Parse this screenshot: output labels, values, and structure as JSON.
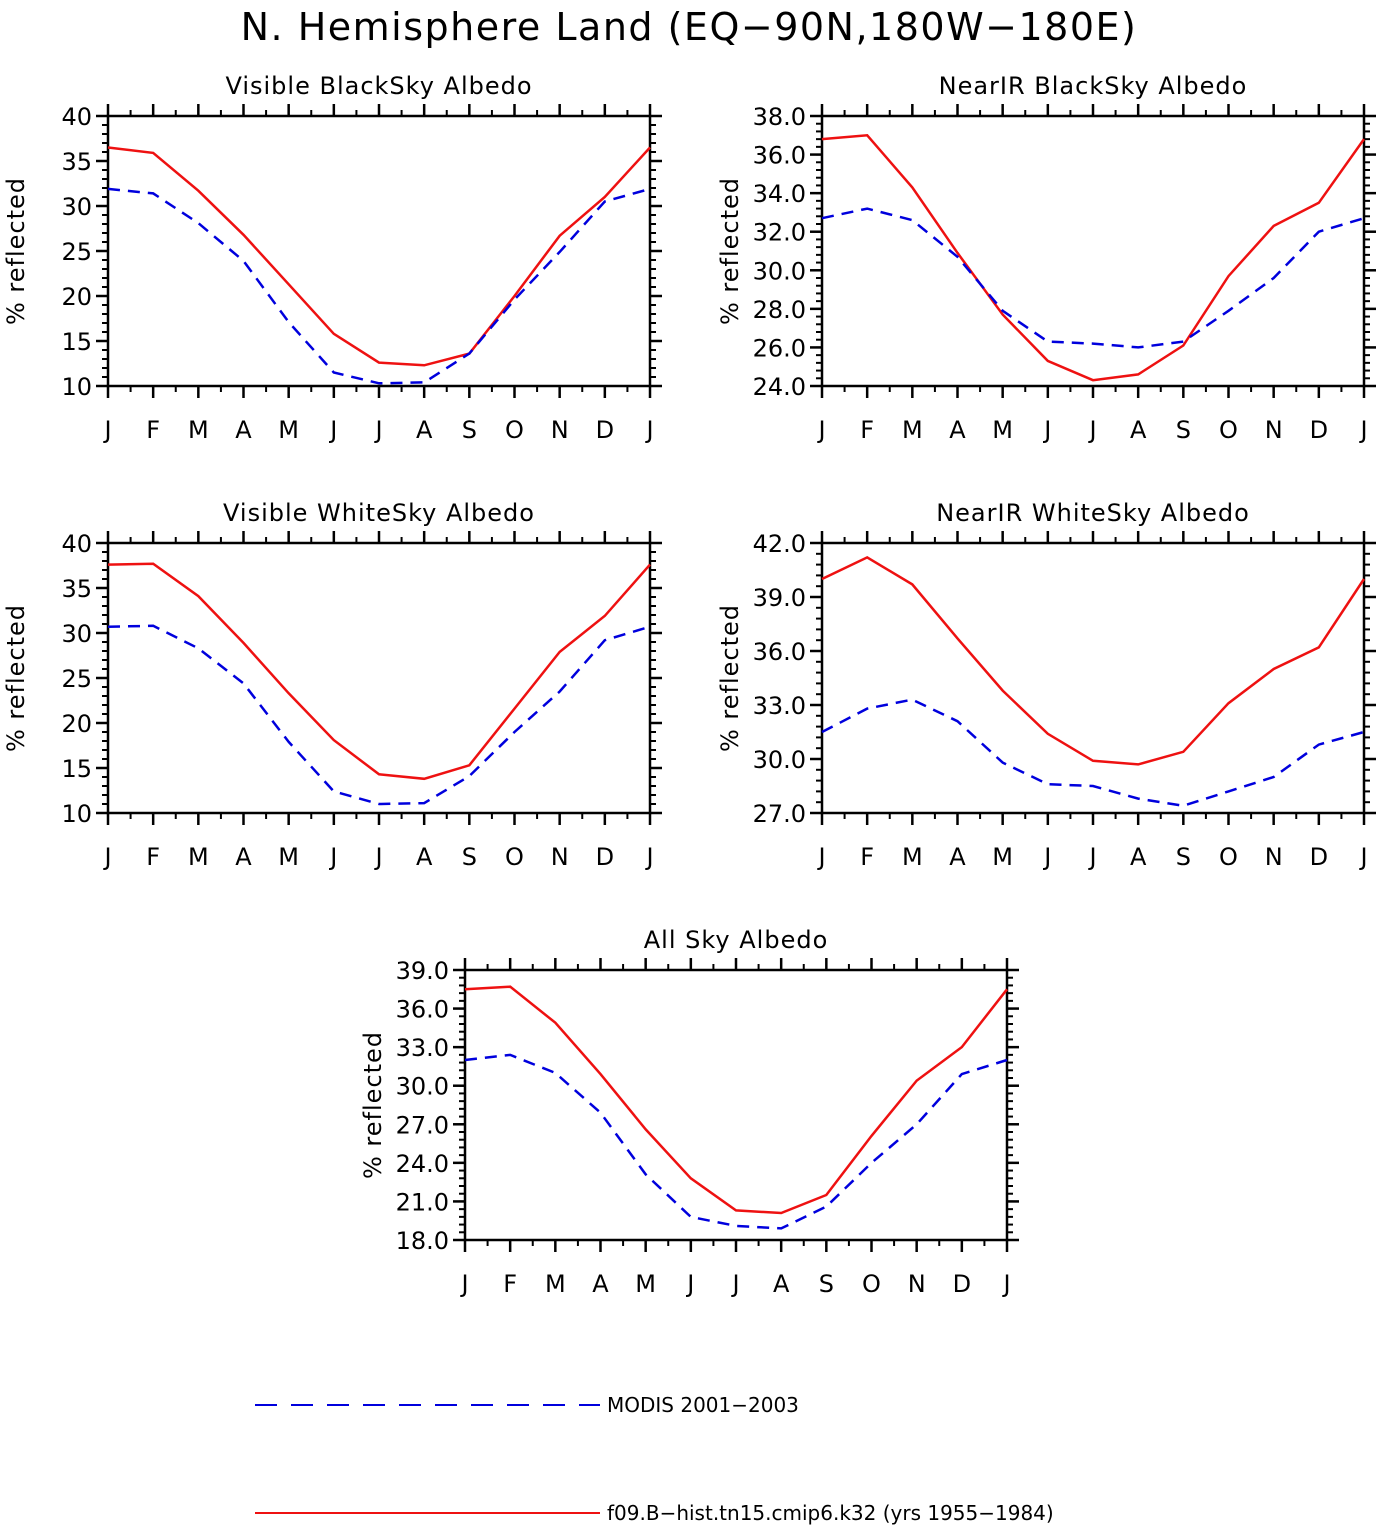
{
  "title": "N. Hemisphere Land (EQ−90N,180W−180E)",
  "months": [
    "J",
    "F",
    "M",
    "A",
    "M",
    "J",
    "J",
    "A",
    "S",
    "O",
    "N",
    "D",
    "J"
  ],
  "colors": {
    "model": "#ee1111",
    "obs": "#0000dd",
    "axis": "#000000"
  },
  "legend": [
    {
      "label": "MODIS 2001−2003",
      "style": "dashed",
      "color": "#0000dd"
    },
    {
      "label": "f09.B−hist.tn15.cmip6.k32 (yrs 1955−1984)",
      "style": "solid",
      "color": "#ee1111"
    }
  ],
  "chart_data": [
    {
      "type": "line",
      "title": "Visible BlackSky Albedo",
      "ylabel": "% reflected",
      "xlabel": "",
      "ylim": [
        10,
        40
      ],
      "yticks": [
        "10",
        "15",
        "20",
        "25",
        "30",
        "35",
        "40"
      ],
      "ytick_values": [
        10,
        15,
        20,
        25,
        30,
        35,
        40
      ],
      "series": [
        {
          "name": "f09.B−hist.tn15.cmip6.k32 (yrs 1955−1984)",
          "style": "solid",
          "values": [
            36.5,
            35.9,
            31.7,
            26.8,
            21.3,
            15.8,
            12.6,
            12.3,
            13.6,
            20.0,
            26.7,
            31.0,
            36.5
          ]
        },
        {
          "name": "MODIS 2001−2003",
          "style": "dashed",
          "values": [
            31.9,
            31.4,
            28.1,
            23.9,
            17.1,
            11.5,
            10.3,
            10.4,
            13.6,
            19.6,
            24.9,
            30.5,
            31.9
          ]
        }
      ]
    },
    {
      "type": "line",
      "title": "NearIR BlackSky Albedo",
      "ylabel": "% reflected",
      "xlabel": "",
      "ylim": [
        24.0,
        38.0
      ],
      "yticks": [
        "24.0",
        "26.0",
        "28.0",
        "30.0",
        "32.0",
        "34.0",
        "36.0",
        "38.0"
      ],
      "ytick_values": [
        24,
        26,
        28,
        30,
        32,
        34,
        36,
        38
      ],
      "series": [
        {
          "name": "f09.B−hist.tn15.cmip6.k32 (yrs 1955−1984)",
          "style": "solid",
          "values": [
            36.8,
            37.0,
            34.3,
            30.9,
            27.7,
            25.3,
            24.3,
            24.6,
            26.1,
            29.7,
            32.3,
            33.5,
            36.8
          ]
        },
        {
          "name": "MODIS 2001−2003",
          "style": "dashed",
          "values": [
            32.7,
            33.2,
            32.6,
            30.7,
            27.9,
            26.3,
            26.2,
            26.0,
            26.3,
            27.9,
            29.6,
            32.0,
            32.7
          ]
        }
      ]
    },
    {
      "type": "line",
      "title": "Visible WhiteSky Albedo",
      "ylabel": "% reflected",
      "xlabel": "",
      "ylim": [
        10,
        40
      ],
      "yticks": [
        "10",
        "15",
        "20",
        "25",
        "30",
        "35",
        "40"
      ],
      "ytick_values": [
        10,
        15,
        20,
        25,
        30,
        35,
        40
      ],
      "series": [
        {
          "name": "f09.B−hist.tn15.cmip6.k32 (yrs 1955−1984)",
          "style": "solid",
          "values": [
            37.6,
            37.7,
            34.1,
            28.9,
            23.3,
            18.1,
            14.3,
            13.8,
            15.3,
            21.6,
            27.9,
            31.9,
            37.6
          ]
        },
        {
          "name": "MODIS 2001−2003",
          "style": "dashed",
          "values": [
            30.7,
            30.8,
            28.3,
            24.4,
            17.9,
            12.4,
            11.0,
            11.1,
            14.1,
            19.0,
            23.5,
            29.2,
            30.7
          ]
        }
      ]
    },
    {
      "type": "line",
      "title": "NearIR WhiteSky Albedo",
      "ylabel": "% reflected",
      "xlabel": "",
      "ylim": [
        27.0,
        42.0
      ],
      "yticks": [
        "27.0",
        "30.0",
        "33.0",
        "36.0",
        "39.0",
        "42.0"
      ],
      "ytick_values": [
        27,
        30,
        33,
        36,
        39,
        42
      ],
      "series": [
        {
          "name": "f09.B−hist.tn15.cmip6.k32 (yrs 1955−1984)",
          "style": "solid",
          "values": [
            40.0,
            41.2,
            39.7,
            36.7,
            33.8,
            31.4,
            29.9,
            29.7,
            30.4,
            33.1,
            35.0,
            36.2,
            40.0
          ]
        },
        {
          "name": "MODIS 2001−2003",
          "style": "dashed",
          "values": [
            31.5,
            32.8,
            33.3,
            32.1,
            29.8,
            28.6,
            28.5,
            27.8,
            27.4,
            28.2,
            29.0,
            30.8,
            31.5
          ]
        }
      ]
    },
    {
      "type": "line",
      "title": "All Sky Albedo",
      "ylabel": "% reflected",
      "xlabel": "",
      "ylim": [
        18.0,
        39.0
      ],
      "yticks": [
        "18.0",
        "21.0",
        "24.0",
        "27.0",
        "30.0",
        "33.0",
        "36.0",
        "39.0"
      ],
      "ytick_values": [
        18,
        21,
        24,
        27,
        30,
        33,
        36,
        39
      ],
      "series": [
        {
          "name": "f09.B−hist.tn15.cmip6.k32 (yrs 1955−1984)",
          "style": "solid",
          "values": [
            37.5,
            37.7,
            34.9,
            30.9,
            26.6,
            22.8,
            20.3,
            20.1,
            21.5,
            26.1,
            30.4,
            33.0,
            37.5
          ]
        },
        {
          "name": "MODIS 2001−2003",
          "style": "dashed",
          "values": [
            32.0,
            32.4,
            31.0,
            27.9,
            23.1,
            19.8,
            19.1,
            18.9,
            20.6,
            24.0,
            27.0,
            30.9,
            32.0
          ]
        }
      ]
    }
  ]
}
